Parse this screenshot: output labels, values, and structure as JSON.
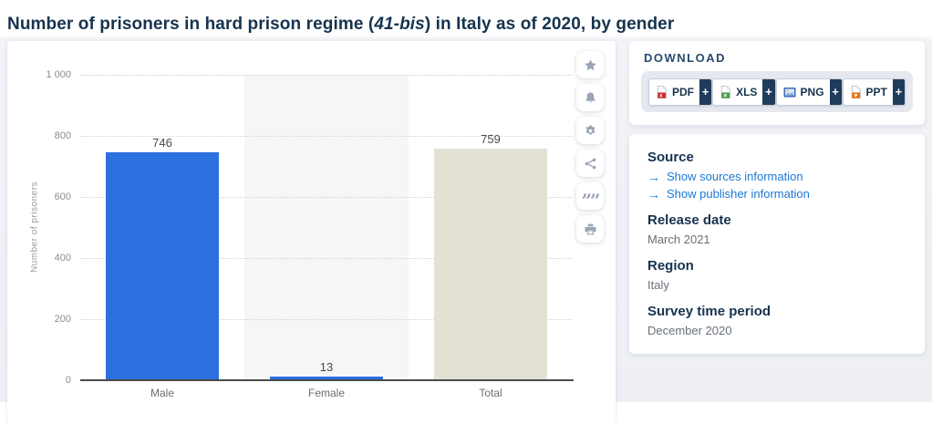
{
  "page": {
    "title": {
      "prefix": "Number of prisoners in hard prison regime (",
      "italic": "41-bis",
      "suffix": ") in Italy as of 2020, by gender"
    }
  },
  "chart_data": {
    "type": "bar",
    "title": "Number of prisoners in hard prison regime (41-bis) in Italy as of 2020, by gender",
    "categories": [
      "Male",
      "Female",
      "Total"
    ],
    "values": [
      746,
      13,
      759
    ],
    "value_labels": [
      "746",
      "13",
      "759"
    ],
    "bar_colors": [
      "#2c6fdf",
      "#2c6fdf",
      "#e3e1d4"
    ],
    "xlabel": "",
    "ylabel": "Number of prisoners",
    "ylim": [
      0,
      1000
    ],
    "yticks": [
      0,
      200,
      400,
      600,
      800,
      1000
    ],
    "ytick_labels": [
      "0",
      "200",
      "400",
      "600",
      "800",
      "1 000"
    ],
    "grid": "horizontal dotted",
    "legend": "none",
    "band_highlight_index": 1
  },
  "toolbar": {
    "buttons": [
      {
        "icon": "star-icon"
      },
      {
        "icon": "bell-icon"
      },
      {
        "icon": "gear-icon"
      },
      {
        "icon": "share-icon"
      },
      {
        "icon": "quote-icon"
      },
      {
        "icon": "print-icon"
      }
    ]
  },
  "download": {
    "heading": "DOWNLOAD",
    "plus_label": "+",
    "buttons": [
      {
        "label": "PDF",
        "icon": "pdf-file-icon"
      },
      {
        "label": "XLS",
        "icon": "xls-file-icon"
      },
      {
        "label": "PNG",
        "icon": "png-file-icon"
      },
      {
        "label": "PPT",
        "icon": "ppt-file-icon"
      }
    ]
  },
  "source_panel": {
    "source_heading": "Source",
    "links": [
      "Show sources information",
      "Show publisher information"
    ],
    "release_heading": "Release date",
    "release_value": "March 2021",
    "region_heading": "Region",
    "region_value": "Italy",
    "survey_heading": "Survey time period",
    "survey_value": "December 2020"
  },
  "colors": {
    "bar_blue": "#2c6fdf",
    "bar_beige": "#e3e1d4",
    "accent_navy": "#1e3c5c",
    "link_blue": "#1b78d5",
    "title_navy": "#16334e"
  }
}
